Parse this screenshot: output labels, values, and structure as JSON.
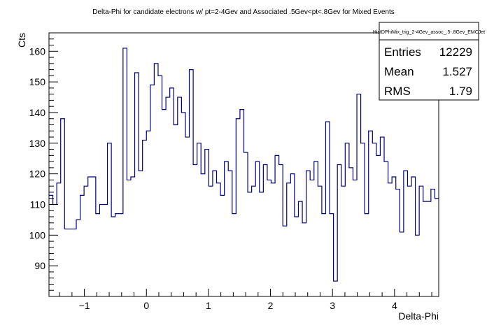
{
  "chart_data": {
    "type": "histogram",
    "title": "Delta-Phi for candidate electrons w/ pt=2-4Gev and Associated .5Gev<pt<.8Gev for Mixed Events",
    "xlabel": "Delta-Phi",
    "ylabel": "Cts",
    "xlim": [
      -1.5708,
      4.7124
    ],
    "ylim": [
      80,
      166
    ],
    "x_ticks": [
      -1,
      0,
      1,
      2,
      3,
      4
    ],
    "y_ticks": [
      90,
      100,
      110,
      120,
      130,
      140,
      150,
      160
    ],
    "grid": false,
    "line_color": "#000080",
    "bin_count": 100,
    "values": [
      113,
      110,
      117,
      138,
      102,
      102,
      102,
      105,
      113,
      116,
      119,
      119,
      107,
      110,
      110,
      130,
      106,
      107,
      107,
      161,
      118,
      119,
      153,
      121,
      131,
      134,
      149,
      156,
      152,
      141,
      145,
      148,
      136,
      145,
      140,
      132,
      154,
      123,
      130,
      120,
      128,
      116,
      121,
      117,
      113,
      124,
      121,
      107,
      138,
      141,
      127,
      114,
      116,
      124,
      114,
      123,
      118,
      117,
      126,
      123,
      103,
      117,
      120,
      106,
      111,
      104,
      121,
      118,
      124,
      116,
      107,
      137,
      107,
      85,
      123,
      116,
      130,
      122,
      118,
      146,
      130,
      107,
      134,
      130,
      126,
      132,
      124,
      117,
      119,
      115,
      101,
      121,
      116,
      119,
      100,
      116,
      111,
      111,
      115,
      112
    ],
    "stats": {
      "name": "HistDPhiMix_trig_2-4Gev_assoc_.5-.8Gev_EMCJet",
      "rows": [
        {
          "label": "Entries",
          "value": "12229"
        },
        {
          "label": "Mean",
          "value": "1.527"
        },
        {
          "label": "RMS",
          "value": "1.79"
        }
      ]
    }
  }
}
